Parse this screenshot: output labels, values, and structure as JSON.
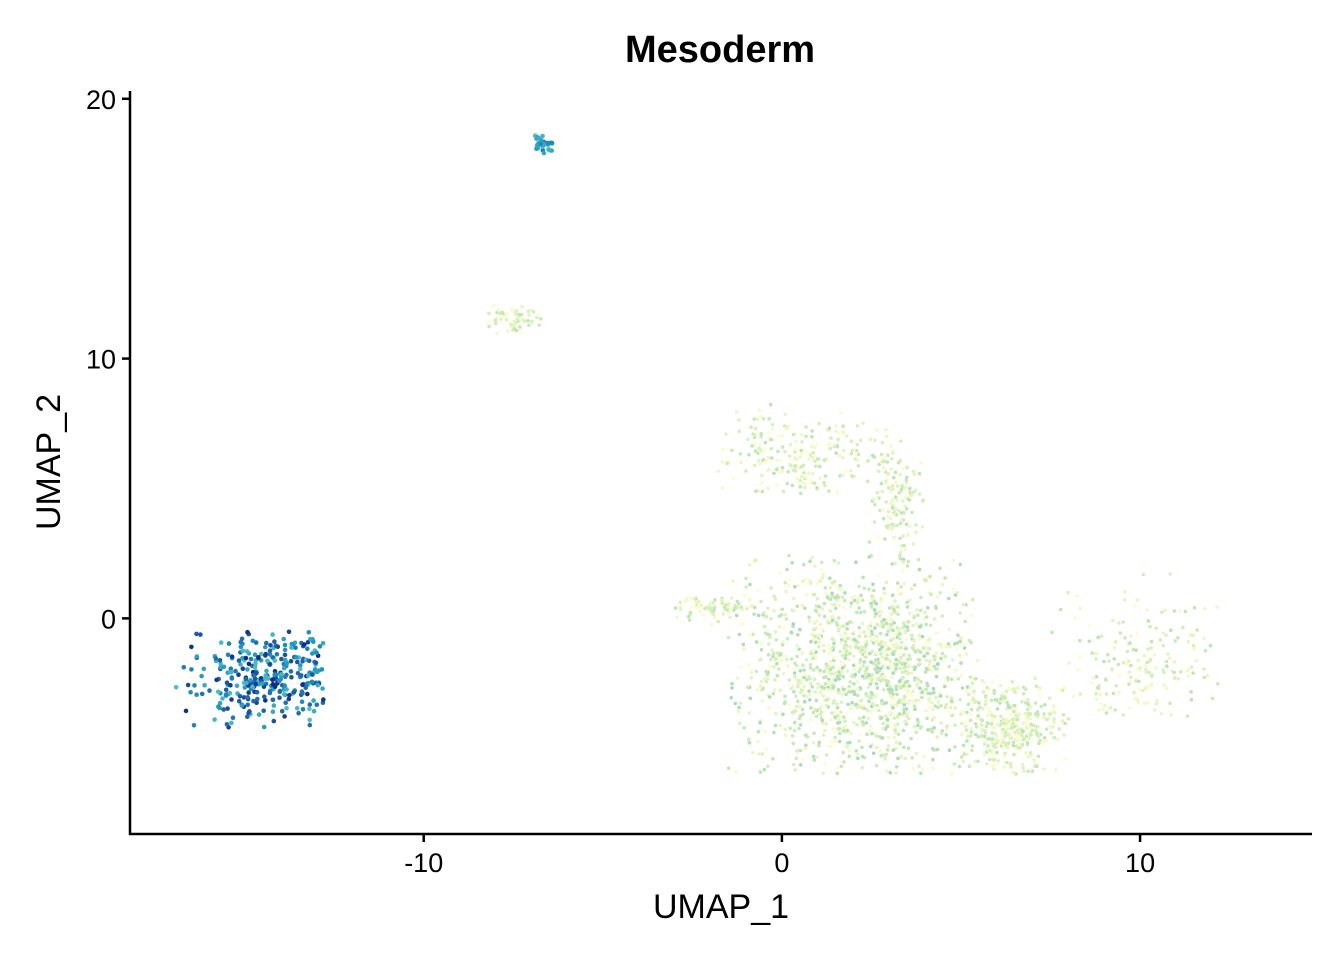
{
  "chart_data": {
    "type": "scatter",
    "title": "Mesoderm",
    "xlabel": "UMAP_1",
    "ylabel": "UMAP_2",
    "xlim": [
      -18.2,
      14.8
    ],
    "ylim": [
      -8.3,
      20.3
    ],
    "xticks": [
      -10,
      0,
      10
    ],
    "yticks": [
      0,
      10,
      20
    ],
    "xtick_labels": [
      "-10",
      "0",
      "10"
    ],
    "ytick_labels": [
      "0",
      "10",
      "20"
    ],
    "grid": false,
    "legend": "none",
    "color_scale": [
      "#ffffcc",
      "#c7e9b4",
      "#7fcdbb",
      "#41b6c4",
      "#1d91c0",
      "#225ea8",
      "#0c2c84"
    ],
    "clusters": [
      {
        "label": "left-cluster",
        "x_range": [
          -17,
          -12.8
        ],
        "y_range": [
          -4.2,
          -0.5
        ],
        "center": [
          -14.2,
          -2.2
        ],
        "n_points": 320,
        "expression_range": [
          0.45,
          1.0
        ]
      },
      {
        "label": "top-small-cluster",
        "x_range": [
          -7.2,
          -6.4
        ],
        "y_range": [
          17.9,
          18.6
        ],
        "center": [
          -6.6,
          18.2
        ],
        "n_points": 30,
        "expression_range": [
          0.4,
          0.75
        ]
      },
      {
        "label": "upper-ring-cluster",
        "x_range": [
          -8.3,
          -6.5
        ],
        "y_range": [
          10.8,
          12.1
        ],
        "center": [
          -7.4,
          11.5
        ],
        "n_points": 60,
        "expression_range": [
          0.0,
          0.2
        ]
      },
      {
        "label": "main-blob",
        "x_range": [
          -1.5,
          5.5
        ],
        "y_range": [
          -6,
          2.5
        ],
        "center": [
          2.3,
          -2.0
        ],
        "n_points": 1300,
        "expression_range": [
          0.0,
          0.25
        ]
      },
      {
        "label": "right-lobe",
        "x_range": [
          5.0,
          8.0
        ],
        "y_range": [
          -6,
          -2.3
        ],
        "center": [
          6.3,
          -4.2
        ],
        "n_points": 350,
        "expression_range": [
          0.0,
          0.2
        ]
      },
      {
        "label": "right-arm",
        "x_range": [
          7.5,
          12.2
        ],
        "y_range": [
          -3.8,
          2.2
        ],
        "center": [
          10.0,
          -2.0
        ],
        "n_points": 180,
        "expression_range": [
          0.0,
          0.2
        ]
      },
      {
        "label": "upper-branch",
        "x_range": [
          -1.8,
          3.5
        ],
        "y_range": [
          4.8,
          8.3
        ],
        "center": [
          0.5,
          6.2
        ],
        "n_points": 220,
        "expression_range": [
          0.0,
          0.2
        ]
      },
      {
        "label": "hook-branch",
        "x_range": [
          2.2,
          4.0
        ],
        "y_range": [
          2.0,
          6.3
        ],
        "center": [
          3.2,
          4.5
        ],
        "n_points": 120,
        "expression_range": [
          0.0,
          0.2
        ]
      },
      {
        "label": "left-arm",
        "x_range": [
          -3.0,
          -0.5
        ],
        "y_range": [
          -0.5,
          0.8
        ],
        "center": [
          -1.8,
          0.5
        ],
        "n_points": 80,
        "expression_range": [
          0.0,
          0.2
        ]
      }
    ]
  }
}
